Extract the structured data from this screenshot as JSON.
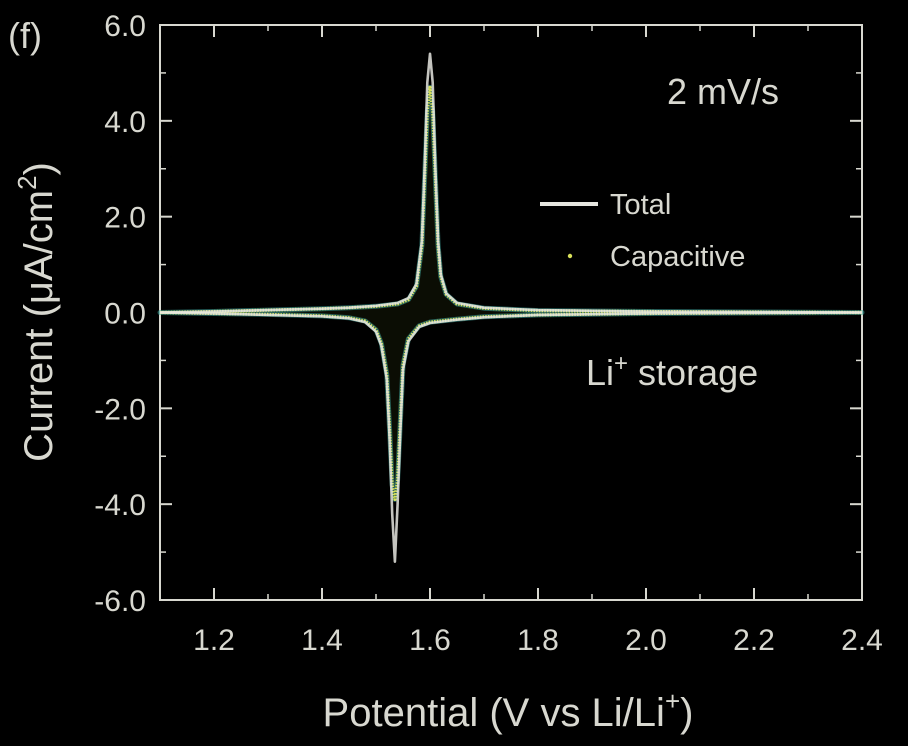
{
  "chart_data": {
    "type": "line",
    "panel_label": "(f)",
    "xlabel": "Potential (V vs Li/Li",
    "xlabel_sup": "+",
    "xlabel_close": ")",
    "ylabel": "Current (μA/cm",
    "ylabel_sup": "2",
    "ylabel_close": ")",
    "xlim": [
      1.1,
      2.4
    ],
    "ylim": [
      -6.0,
      6.0
    ],
    "xticks": [
      1.2,
      1.4,
      1.6,
      1.8,
      2.0,
      2.2,
      2.4
    ],
    "xtick_labels": [
      "1.2",
      "1.4",
      "1.6",
      "1.8",
      "2.0",
      "2.2",
      "2.4"
    ],
    "yticks": [
      6.0,
      4.0,
      2.0,
      0.0,
      -2.0,
      -4.0,
      -6.0
    ],
    "ytick_labels": [
      "6.0",
      "4.0",
      "2.0",
      "0.0",
      "-2.0",
      "-4.0",
      "-6.0"
    ],
    "annotations": {
      "scan_rate": "2 mV/s",
      "storage_main": "Li",
      "storage_sup": "+",
      "storage_rest": " storage"
    },
    "legend": [
      {
        "label": "Total",
        "style": "line"
      },
      {
        "label": "Capacitive",
        "style": "dots"
      }
    ],
    "grid": false,
    "colors": {
      "background": "#000000",
      "axes": "#d8d8d0",
      "total": "#e6e6e0",
      "capacitive": "#d8e05a",
      "capacitive_edge": "#3fa8a0"
    },
    "series": [
      {
        "name": "Total",
        "anodic": {
          "x": [
            1.1,
            1.2,
            1.3,
            1.4,
            1.45,
            1.5,
            1.54,
            1.56,
            1.575,
            1.585,
            1.59,
            1.595,
            1.6,
            1.605,
            1.61,
            1.615,
            1.62,
            1.63,
            1.65,
            1.7,
            1.8,
            2.0,
            2.2,
            2.4
          ],
          "y": [
            0.0,
            0.02,
            0.05,
            0.08,
            0.1,
            0.14,
            0.2,
            0.3,
            0.6,
            1.5,
            3.0,
            4.8,
            5.4,
            4.8,
            3.0,
            1.5,
            0.8,
            0.4,
            0.2,
            0.1,
            0.05,
            0.02,
            0.01,
            0.0
          ]
        },
        "cathodic": {
          "x": [
            2.4,
            2.2,
            2.0,
            1.8,
            1.7,
            1.65,
            1.6,
            1.58,
            1.56,
            1.55,
            1.545,
            1.54,
            1.535,
            1.53,
            1.525,
            1.52,
            1.51,
            1.5,
            1.48,
            1.45,
            1.4,
            1.3,
            1.2,
            1.1
          ],
          "y": [
            0.0,
            -0.01,
            -0.02,
            -0.05,
            -0.1,
            -0.15,
            -0.22,
            -0.3,
            -0.6,
            -1.2,
            -2.5,
            -4.0,
            -5.2,
            -4.2,
            -2.6,
            -1.4,
            -0.7,
            -0.4,
            -0.2,
            -0.12,
            -0.08,
            -0.05,
            -0.02,
            0.0
          ]
        }
      },
      {
        "name": "Capacitive",
        "anodic": {
          "x": [
            1.1,
            1.2,
            1.3,
            1.4,
            1.45,
            1.5,
            1.54,
            1.56,
            1.575,
            1.585,
            1.59,
            1.595,
            1.6,
            1.605,
            1.61,
            1.615,
            1.62,
            1.63,
            1.65,
            1.7,
            1.8,
            2.0,
            2.2,
            2.4
          ],
          "y": [
            0.0,
            0.02,
            0.05,
            0.08,
            0.1,
            0.13,
            0.18,
            0.27,
            0.55,
            1.4,
            2.8,
            4.2,
            4.7,
            4.2,
            2.8,
            1.4,
            0.75,
            0.38,
            0.18,
            0.09,
            0.04,
            0.02,
            0.01,
            0.0
          ]
        },
        "cathodic": {
          "x": [
            2.4,
            2.2,
            2.0,
            1.8,
            1.7,
            1.65,
            1.6,
            1.58,
            1.56,
            1.55,
            1.545,
            1.54,
            1.535,
            1.53,
            1.525,
            1.52,
            1.51,
            1.5,
            1.48,
            1.45,
            1.4,
            1.3,
            1.2,
            1.1
          ],
          "y": [
            0.0,
            -0.01,
            -0.02,
            -0.05,
            -0.09,
            -0.14,
            -0.2,
            -0.28,
            -0.55,
            -1.1,
            -2.3,
            -3.5,
            -3.9,
            -3.6,
            -2.4,
            -1.3,
            -0.65,
            -0.36,
            -0.18,
            -0.11,
            -0.07,
            -0.04,
            -0.02,
            0.0
          ]
        }
      }
    ]
  }
}
